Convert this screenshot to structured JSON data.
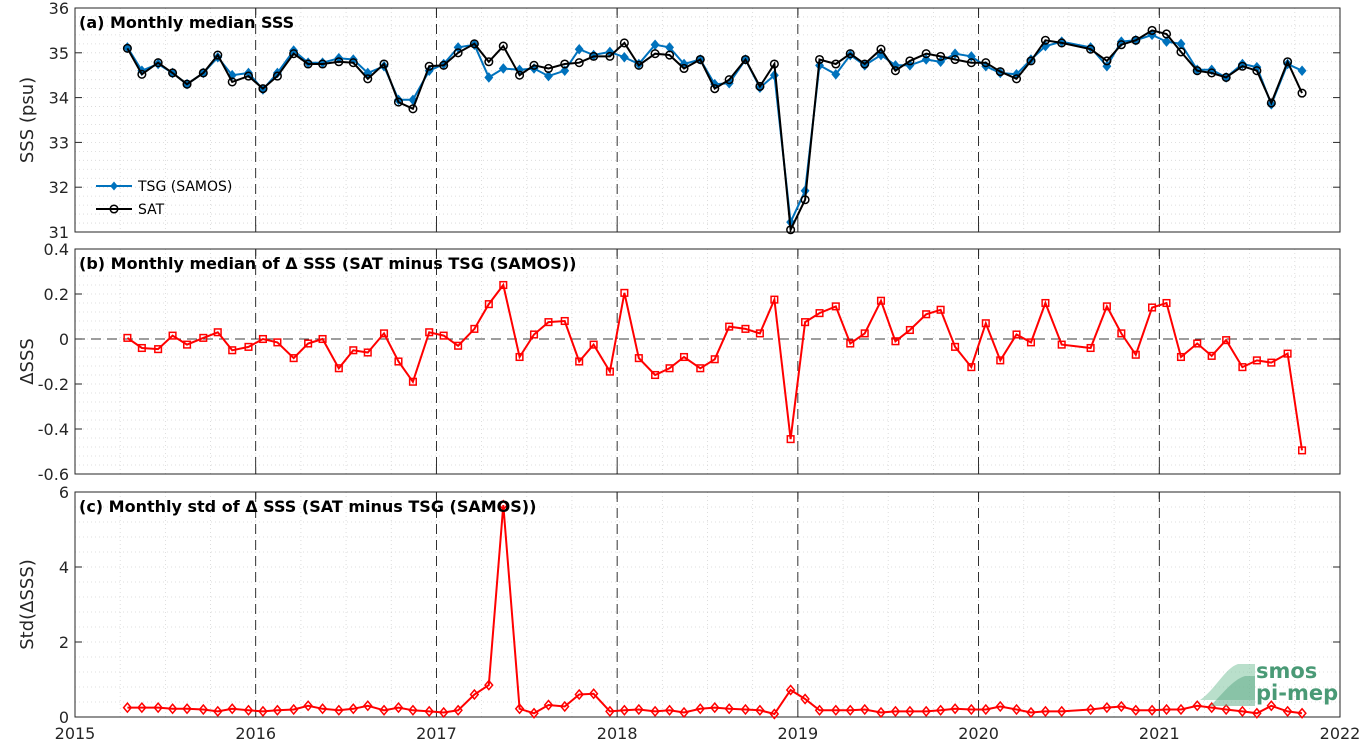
{
  "colors": {
    "tsg": "#0072BD",
    "sat": "#000000",
    "delta": "#FF0000",
    "logo": "#4a9a76"
  },
  "logo": {
    "line1": "smos",
    "line2": "pi-mep"
  },
  "chart_data": [
    {
      "type": "line",
      "title": "(a) Monthly median SSS",
      "ylabel": "SSS (psu)",
      "ylim": [
        31,
        36
      ],
      "yticks": [
        31,
        32,
        33,
        34,
        35,
        36
      ],
      "xlim": [
        2015,
        2022
      ],
      "xticks": [
        2015,
        2016,
        2017,
        2018,
        2019,
        2020,
        2021,
        2022
      ],
      "grid": "dotted",
      "legend_position": "lower-left",
      "x": [
        2015.29,
        2015.37,
        2015.46,
        2015.54,
        2015.62,
        2015.71,
        2015.79,
        2015.87,
        2015.96,
        2016.04,
        2016.12,
        2016.21,
        2016.29,
        2016.37,
        2016.46,
        2016.54,
        2016.62,
        2016.71,
        2016.79,
        2016.87,
        2016.96,
        2017.04,
        2017.12,
        2017.21,
        2017.29,
        2017.37,
        2017.46,
        2017.54,
        2017.62,
        2017.71,
        2017.79,
        2017.87,
        2017.96,
        2018.04,
        2018.12,
        2018.21,
        2018.29,
        2018.37,
        2018.46,
        2018.54,
        2018.62,
        2018.71,
        2018.79,
        2018.87,
        2018.96,
        2019.04,
        2019.12,
        2019.21,
        2019.29,
        2019.37,
        2019.46,
        2019.54,
        2019.62,
        2019.71,
        2019.79,
        2019.87,
        2019.96,
        2020.04,
        2020.12,
        2020.21,
        2020.29,
        2020.37,
        2020.46,
        2020.62,
        2020.71,
        2020.79,
        2020.87,
        2020.96,
        2021.04,
        2021.12,
        2021.21,
        2021.29,
        2021.37,
        2021.46,
        2021.54,
        2021.62,
        2021.71,
        2021.79
      ],
      "series": [
        {
          "name": "TSG (SAMOS)",
          "marker": "filled-diamond",
          "values": [
            35.12,
            34.6,
            34.75,
            34.55,
            34.3,
            34.55,
            34.9,
            34.5,
            34.55,
            34.18,
            34.55,
            35.05,
            34.78,
            34.78,
            34.88,
            34.85,
            34.55,
            34.7,
            33.95,
            33.95,
            34.6,
            34.75,
            35.12,
            35.18,
            34.45,
            34.65,
            34.62,
            34.65,
            34.48,
            34.6,
            35.08,
            34.95,
            35.02,
            34.9,
            34.75,
            35.18,
            35.12,
            34.75,
            34.85,
            34.3,
            34.32,
            34.85,
            34.22,
            34.5,
            31.22,
            31.92,
            34.72,
            34.52,
            34.95,
            34.72,
            34.95,
            34.72,
            34.72,
            34.85,
            34.8,
            34.98,
            34.92,
            34.7,
            34.55,
            34.52,
            34.85,
            35.15,
            35.25,
            35.12,
            34.7,
            35.25,
            35.28,
            35.4,
            35.25,
            35.2,
            34.62,
            34.62,
            34.45,
            34.75,
            34.68,
            33.85,
            34.75,
            34.6
          ]
        },
        {
          "name": "SAT",
          "marker": "open-circle",
          "values": [
            35.1,
            34.52,
            34.78,
            34.55,
            34.3,
            34.55,
            34.95,
            34.35,
            34.48,
            34.2,
            34.48,
            34.98,
            34.75,
            34.75,
            34.8,
            34.78,
            34.42,
            34.75,
            33.9,
            33.75,
            34.7,
            34.72,
            35.0,
            35.2,
            34.8,
            35.15,
            34.5,
            34.72,
            34.65,
            34.75,
            34.78,
            34.92,
            34.92,
            35.22,
            34.72,
            34.98,
            34.95,
            34.65,
            34.85,
            34.2,
            34.4,
            34.85,
            34.25,
            34.75,
            31.05,
            31.72,
            34.85,
            34.75,
            34.98,
            34.75,
            35.08,
            34.6,
            34.82,
            34.98,
            34.92,
            34.85,
            34.78,
            34.78,
            34.58,
            34.42,
            34.82,
            35.28,
            35.22,
            35.08,
            34.82,
            35.18,
            35.28,
            35.5,
            35.42,
            35.02,
            34.6,
            34.55,
            34.45,
            34.7,
            34.6,
            33.88,
            34.8,
            34.1
          ]
        }
      ]
    },
    {
      "type": "line",
      "title": "(b) Monthly median of Δ SSS (SAT minus TSG (SAMOS))",
      "ylabel": "ΔSSS",
      "ylim": [
        -0.6,
        0.4
      ],
      "yticks": [
        -0.6,
        -0.4,
        -0.2,
        0,
        0.2,
        0.4
      ],
      "ytick_labels": [
        "-0.6",
        "-0.4",
        "-0.2",
        "0",
        "0.2",
        "0.4"
      ],
      "xlim": [
        2015,
        2022
      ],
      "xticks": [
        2015,
        2016,
        2017,
        2018,
        2019,
        2020,
        2021,
        2022
      ],
      "grid": "dotted",
      "zero_line": "dashed",
      "x": [
        2015.29,
        2015.37,
        2015.46,
        2015.54,
        2015.62,
        2015.71,
        2015.79,
        2015.87,
        2015.96,
        2016.04,
        2016.12,
        2016.21,
        2016.29,
        2016.37,
        2016.46,
        2016.54,
        2016.62,
        2016.71,
        2016.79,
        2016.87,
        2016.96,
        2017.04,
        2017.12,
        2017.21,
        2017.29,
        2017.37,
        2017.46,
        2017.54,
        2017.62,
        2017.71,
        2017.79,
        2017.87,
        2017.96,
        2018.04,
        2018.12,
        2018.21,
        2018.29,
        2018.37,
        2018.46,
        2018.54,
        2018.62,
        2018.71,
        2018.79,
        2018.87,
        2018.96,
        2019.04,
        2019.12,
        2019.21,
        2019.29,
        2019.37,
        2019.46,
        2019.54,
        2019.62,
        2019.71,
        2019.79,
        2019.87,
        2019.96,
        2020.04,
        2020.12,
        2020.21,
        2020.29,
        2020.37,
        2020.46,
        2020.62,
        2020.71,
        2020.79,
        2020.87,
        2020.96,
        2021.04,
        2021.12,
        2021.21,
        2021.29,
        2021.37,
        2021.46,
        2021.54,
        2021.62,
        2021.71,
        2021.79
      ],
      "series": [
        {
          "marker": "open-square",
          "values": [
            0.005,
            -0.04,
            -0.045,
            0.015,
            -0.025,
            0.005,
            0.03,
            -0.05,
            -0.035,
            0.0,
            -0.015,
            -0.085,
            -0.02,
            0.0,
            -0.13,
            -0.05,
            -0.06,
            0.025,
            -0.1,
            -0.19,
            0.03,
            0.015,
            -0.03,
            0.045,
            0.155,
            0.24,
            -0.08,
            0.02,
            0.075,
            0.08,
            -0.1,
            -0.025,
            -0.145,
            0.205,
            -0.085,
            -0.16,
            -0.13,
            -0.08,
            -0.13,
            -0.09,
            0.055,
            0.045,
            0.025,
            0.175,
            -0.445,
            0.075,
            0.115,
            0.145,
            -0.02,
            0.025,
            0.17,
            -0.01,
            0.04,
            0.11,
            0.13,
            -0.035,
            -0.125,
            0.07,
            -0.095,
            0.02,
            -0.015,
            0.16,
            -0.025,
            -0.04,
            0.145,
            0.025,
            -0.07,
            0.14,
            0.16,
            -0.08,
            -0.02,
            -0.075,
            -0.005,
            -0.125,
            -0.095,
            -0.105,
            -0.065,
            -0.495
          ]
        }
      ]
    },
    {
      "type": "line",
      "title": "(c) Monthly std of Δ SSS (SAT minus TSG (SAMOS))",
      "ylabel": "Std(ΔSSS)",
      "ylim": [
        0,
        6
      ],
      "yticks": [
        0,
        2,
        4,
        6
      ],
      "xlim": [
        2015,
        2022
      ],
      "xticks": [
        2015,
        2016,
        2017,
        2018,
        2019,
        2020,
        2021,
        2022
      ],
      "xtick_labels": [
        "2015",
        "2016",
        "2017",
        "2018",
        "2019",
        "2020",
        "2021",
        "2022"
      ],
      "grid": "dotted",
      "x": [
        2015.29,
        2015.37,
        2015.46,
        2015.54,
        2015.62,
        2015.71,
        2015.79,
        2015.87,
        2015.96,
        2016.04,
        2016.12,
        2016.21,
        2016.29,
        2016.37,
        2016.46,
        2016.54,
        2016.62,
        2016.71,
        2016.79,
        2016.87,
        2016.96,
        2017.04,
        2017.12,
        2017.21,
        2017.29,
        2017.37,
        2017.46,
        2017.54,
        2017.62,
        2017.71,
        2017.79,
        2017.87,
        2017.96,
        2018.04,
        2018.12,
        2018.21,
        2018.29,
        2018.37,
        2018.46,
        2018.54,
        2018.62,
        2018.71,
        2018.79,
        2018.87,
        2018.96,
        2019.04,
        2019.12,
        2019.21,
        2019.29,
        2019.37,
        2019.46,
        2019.54,
        2019.62,
        2019.71,
        2019.79,
        2019.87,
        2019.96,
        2020.04,
        2020.12,
        2020.21,
        2020.29,
        2020.37,
        2020.46,
        2020.62,
        2020.71,
        2020.79,
        2020.87,
        2020.96,
        2021.04,
        2021.12,
        2021.21,
        2021.29,
        2021.37,
        2021.46,
        2021.54,
        2021.62,
        2021.71,
        2021.79
      ],
      "series": [
        {
          "marker": "open-diamond",
          "values": [
            0.25,
            0.25,
            0.25,
            0.22,
            0.22,
            0.2,
            0.15,
            0.22,
            0.18,
            0.15,
            0.18,
            0.2,
            0.3,
            0.22,
            0.18,
            0.22,
            0.3,
            0.18,
            0.25,
            0.18,
            0.15,
            0.12,
            0.18,
            0.6,
            0.85,
            5.65,
            0.22,
            0.1,
            0.32,
            0.28,
            0.6,
            0.62,
            0.15,
            0.18,
            0.2,
            0.15,
            0.18,
            0.12,
            0.22,
            0.25,
            0.22,
            0.2,
            0.18,
            0.08,
            0.72,
            0.48,
            0.18,
            0.18,
            0.18,
            0.2,
            0.12,
            0.15,
            0.15,
            0.15,
            0.18,
            0.22,
            0.2,
            0.2,
            0.28,
            0.2,
            0.12,
            0.15,
            0.15,
            0.2,
            0.25,
            0.28,
            0.18,
            0.18,
            0.2,
            0.2,
            0.3,
            0.25,
            0.2,
            0.15,
            0.1,
            0.3,
            0.15,
            0.1
          ]
        }
      ]
    }
  ]
}
